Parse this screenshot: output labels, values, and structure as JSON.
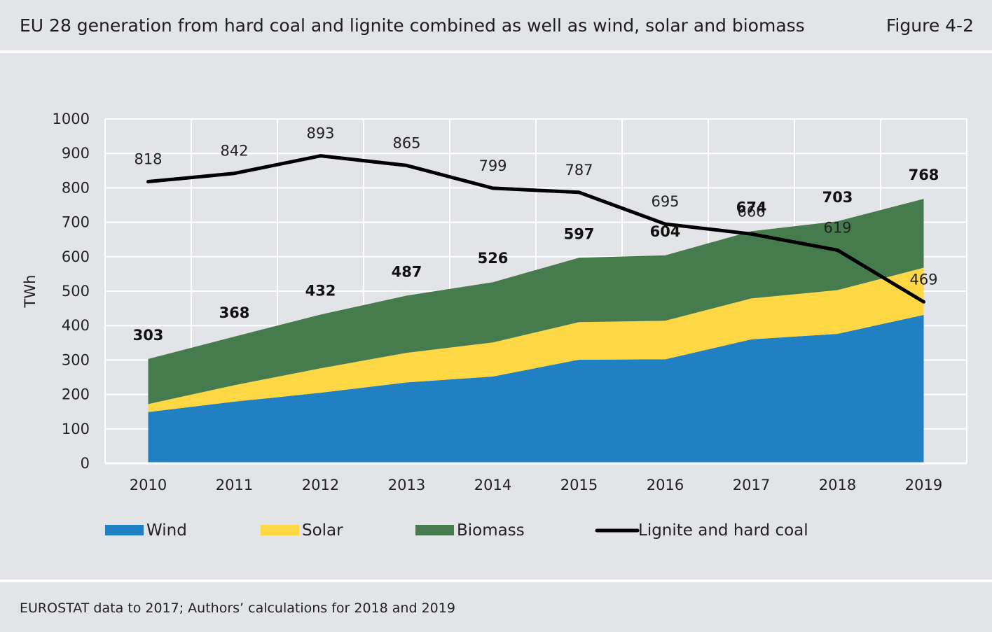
{
  "header": {
    "title": "EU 28 generation from hard coal and lignite combined as well as wind, solar and biomass",
    "figure_number": "Figure 4-2"
  },
  "footer": {
    "source": "EUROSTAT data to 2017; Authors’ calculations for 2018 and 2019"
  },
  "colors": {
    "wind": "#2180c2",
    "solar": "#fdd744",
    "biomass": "#467b4e",
    "coal": "#000000"
  },
  "chart_data": {
    "type": "area",
    "title": "",
    "xlabel": "",
    "ylabel": "TWh",
    "ylim": [
      0,
      1000
    ],
    "yticks": [
      0,
      100,
      200,
      300,
      400,
      500,
      600,
      700,
      800,
      900,
      1000
    ],
    "grid": true,
    "legend_position": "bottom",
    "categories": [
      "2010",
      "2011",
      "2012",
      "2013",
      "2014",
      "2015",
      "2016",
      "2017",
      "2018",
      "2019"
    ],
    "stacked_series": [
      {
        "name": "Wind",
        "values": [
          149,
          179,
          205,
          235,
          252,
          301,
          302,
          360,
          376,
          431
        ]
      },
      {
        "name": "Solar",
        "values": [
          23,
          48,
          71,
          86,
          99,
          109,
          112,
          119,
          127,
          137
        ]
      },
      {
        "name": "Biomass",
        "values": [
          131,
          141,
          156,
          166,
          175,
          187,
          190,
          195,
          200,
          200
        ]
      }
    ],
    "stacked_totals": [
      303,
      368,
      432,
      487,
      526,
      597,
      604,
      674,
      703,
      768
    ],
    "line_series": {
      "name": "Lignite and hard coal",
      "values": [
        818,
        842,
        893,
        865,
        799,
        787,
        695,
        666,
        619,
        469
      ]
    }
  }
}
